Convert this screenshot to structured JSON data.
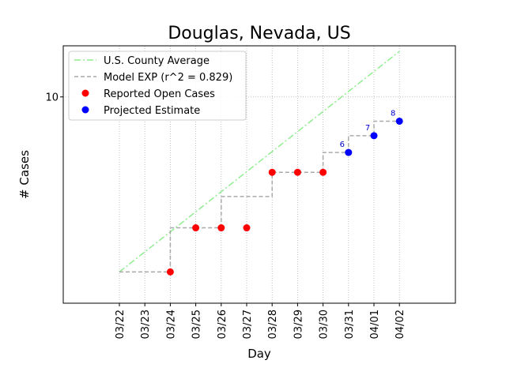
{
  "chart_data": {
    "type": "line",
    "title": "Douglas, Nevada, US",
    "xlabel": "Day",
    "ylabel": "# Cases",
    "y_scale": "log",
    "ylim": [
      1.5,
      16
    ],
    "y_ticks": [
      {
        "value": 10,
        "label": "10"
      }
    ],
    "categories": [
      "03/22",
      "03/23",
      "03/24",
      "03/25",
      "03/26",
      "03/27",
      "03/28",
      "03/29",
      "03/30",
      "03/31",
      "04/01",
      "04/02"
    ],
    "grid": true,
    "legend_position": "top-left",
    "series": [
      {
        "name": "U.S. County Average",
        "style": "dashdot-line",
        "color": "#90ee90",
        "points": [
          {
            "x": "03/22",
            "y": 2.0
          },
          {
            "x": "04/02",
            "y": 15.2
          }
        ]
      },
      {
        "name": "Model EXP (r^2 = 0.829)",
        "style": "dashed-step",
        "color": "#a9a9a9",
        "values": [
          2,
          2,
          2,
          3,
          3,
          4,
          4,
          5,
          5,
          6,
          7,
          8
        ]
      },
      {
        "name": "Reported Open Cases",
        "style": "markers",
        "color": "#ff0000",
        "points": [
          {
            "x": "03/24",
            "y": 2
          },
          {
            "x": "03/25",
            "y": 3
          },
          {
            "x": "03/26",
            "y": 3
          },
          {
            "x": "03/27",
            "y": 3
          },
          {
            "x": "03/28",
            "y": 5
          },
          {
            "x": "03/29",
            "y": 5
          },
          {
            "x": "03/30",
            "y": 5
          }
        ]
      },
      {
        "name": "Projected Estimate",
        "style": "markers",
        "color": "#0000ff",
        "points": [
          {
            "x": "03/31",
            "y": 6,
            "label": "6"
          },
          {
            "x": "04/01",
            "y": 7,
            "label": "7"
          },
          {
            "x": "04/02",
            "y": 8,
            "label": "8"
          }
        ]
      }
    ]
  }
}
